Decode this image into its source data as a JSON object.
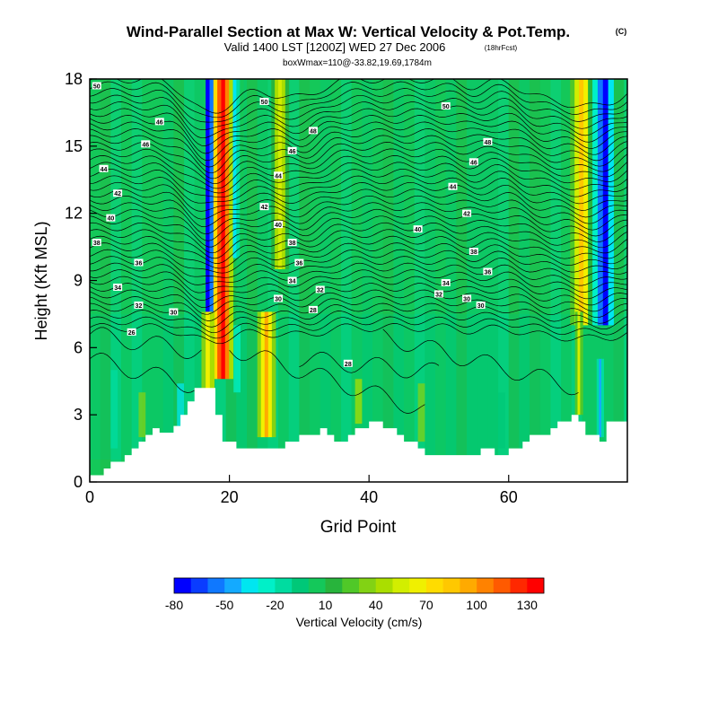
{
  "chart_data": {
    "type": "heatmap",
    "title": "Wind-Parallel Section at Max W: Vertical Velocity & Pot.Temp.",
    "title_mark": "(C)",
    "subtitle": "Valid 1400 LST [1200Z] WED 27 Dec 2006",
    "subtitle_mark": "(18hrFcst)",
    "subtitle2": "boxWmax=110@-33.82,19.69,1784m",
    "xlabel": "Grid Point",
    "ylabel": "Height (Kft MSL)",
    "xlim": [
      0,
      77
    ],
    "ylim": [
      0,
      18
    ],
    "xticks": [
      "0",
      "20",
      "40",
      "60"
    ],
    "xtick_values": [
      0,
      20,
      40,
      60
    ],
    "yticks": [
      "0",
      "3",
      "6",
      "9",
      "12",
      "15",
      "18"
    ],
    "ytick_values": [
      0,
      3,
      6,
      9,
      12,
      15,
      18
    ],
    "colorbar": {
      "label": "Vertical Velocity (cm/s)",
      "tick_labels": [
        "-80",
        "-50",
        "-20",
        "10",
        "40",
        "70",
        "100",
        "130"
      ],
      "tick_values": [
        -80,
        -50,
        -20,
        10,
        40,
        70,
        100,
        130
      ],
      "min": -80,
      "max": 140,
      "step": 10,
      "colors": [
        "#0000ff",
        "#0a3cff",
        "#0f78ff",
        "#14aaff",
        "#00e6f0",
        "#00f0c8",
        "#00dca0",
        "#00c878",
        "#14c85a",
        "#28b43c",
        "#50c828",
        "#82d214",
        "#aade00",
        "#d2ee00",
        "#f0f000",
        "#ffdc00",
        "#ffc800",
        "#ffaa00",
        "#ff8200",
        "#ff5a00",
        "#ff2800",
        "#ff0000"
      ]
    },
    "ridges": [
      {
        "x": 72,
        "w": 60
      },
      {
        "x": 17,
        "w": 40
      },
      {
        "x": 26,
        "w": 60
      },
      {
        "x": 55,
        "w": 30
      },
      {
        "x": 31,
        "w": 30
      },
      {
        "x": 63,
        "w": 30
      },
      {
        "x": 66,
        "w": 30
      }
    ],
    "terrain": [
      {
        "x": 0,
        "h": 0.3
      },
      {
        "x": 2,
        "h": 0.6
      },
      {
        "x": 3,
        "h": 0.9
      },
      {
        "x": 5,
        "h": 1.2
      },
      {
        "x": 6,
        "h": 1.5
      },
      {
        "x": 7,
        "h": 1.8
      },
      {
        "x": 8,
        "h": 2.1
      },
      {
        "x": 9,
        "h": 2.4
      },
      {
        "x": 10,
        "h": 2.2
      },
      {
        "x": 12,
        "h": 2.5
      },
      {
        "x": 13,
        "h": 3.0
      },
      {
        "x": 14,
        "h": 3.6
      },
      {
        "x": 15,
        "h": 4.2
      },
      {
        "x": 18,
        "h": 3.0
      },
      {
        "x": 19,
        "h": 1.8
      },
      {
        "x": 21,
        "h": 1.5
      },
      {
        "x": 22,
        "h": 1.5
      },
      {
        "x": 28,
        "h": 1.8
      },
      {
        "x": 30,
        "h": 2.1
      },
      {
        "x": 33,
        "h": 2.4
      },
      {
        "x": 34,
        "h": 2.1
      },
      {
        "x": 35,
        "h": 1.8
      },
      {
        "x": 37,
        "h": 2.1
      },
      {
        "x": 38,
        "h": 2.4
      },
      {
        "x": 40,
        "h": 2.7
      },
      {
        "x": 42,
        "h": 2.4
      },
      {
        "x": 44,
        "h": 2.1
      },
      {
        "x": 45,
        "h": 1.8
      },
      {
        "x": 47,
        "h": 1.5
      },
      {
        "x": 48,
        "h": 1.2
      },
      {
        "x": 50,
        "h": 1.2
      },
      {
        "x": 56,
        "h": 1.5
      },
      {
        "x": 58,
        "h": 1.2
      },
      {
        "x": 60,
        "h": 1.5
      },
      {
        "x": 62,
        "h": 1.8
      },
      {
        "x": 63,
        "h": 2.1
      },
      {
        "x": 66,
        "h": 2.4
      },
      {
        "x": 67,
        "h": 2.7
      },
      {
        "x": 69,
        "h": 3.0
      },
      {
        "x": 70,
        "h": 2.7
      },
      {
        "x": 71,
        "h": 2.1
      },
      {
        "x": 73,
        "h": 1.8
      },
      {
        "x": 74,
        "h": 2.7
      },
      {
        "x": 77,
        "h": 2.7
      }
    ],
    "isentrope_labels": [
      {
        "text": "50",
        "x": 1,
        "y": 17.7
      },
      {
        "text": "46",
        "x": 10,
        "y": 16.1
      },
      {
        "text": "46",
        "x": 8,
        "y": 15.1
      },
      {
        "text": "44",
        "x": 2,
        "y": 14.0
      },
      {
        "text": "42",
        "x": 4,
        "y": 12.9
      },
      {
        "text": "40",
        "x": 3,
        "y": 11.8
      },
      {
        "text": "38",
        "x": 1,
        "y": 10.7
      },
      {
        "text": "36",
        "x": 7,
        "y": 9.8
      },
      {
        "text": "34",
        "x": 4,
        "y": 8.7
      },
      {
        "text": "32",
        "x": 7,
        "y": 7.9
      },
      {
        "text": "30",
        "x": 12,
        "y": 7.6
      },
      {
        "text": "26",
        "x": 6,
        "y": 6.7
      },
      {
        "text": "50",
        "x": 25,
        "y": 17.0
      },
      {
        "text": "48",
        "x": 32,
        "y": 15.7
      },
      {
        "text": "46",
        "x": 29,
        "y": 14.8
      },
      {
        "text": "44",
        "x": 27,
        "y": 13.7
      },
      {
        "text": "42",
        "x": 25,
        "y": 12.3
      },
      {
        "text": "40",
        "x": 27,
        "y": 11.5
      },
      {
        "text": "38",
        "x": 29,
        "y": 10.7
      },
      {
        "text": "36",
        "x": 30,
        "y": 9.8
      },
      {
        "text": "34",
        "x": 29,
        "y": 9.0
      },
      {
        "text": "32",
        "x": 33,
        "y": 8.6
      },
      {
        "text": "30",
        "x": 27,
        "y": 8.2
      },
      {
        "text": "28",
        "x": 32,
        "y": 7.7
      },
      {
        "text": "28",
        "x": 37,
        "y": 5.3
      },
      {
        "text": "50",
        "x": 51,
        "y": 16.8
      },
      {
        "text": "48",
        "x": 57,
        "y": 15.2
      },
      {
        "text": "46",
        "x": 55,
        "y": 14.3
      },
      {
        "text": "44",
        "x": 52,
        "y": 13.2
      },
      {
        "text": "42",
        "x": 54,
        "y": 12.0
      },
      {
        "text": "40",
        "x": 47,
        "y": 11.3
      },
      {
        "text": "38",
        "x": 55,
        "y": 10.3
      },
      {
        "text": "36",
        "x": 57,
        "y": 9.4
      },
      {
        "text": "34",
        "x": 51,
        "y": 8.9
      },
      {
        "text": "32",
        "x": 50,
        "y": 8.4
      },
      {
        "text": "30",
        "x": 54,
        "y": 8.2
      },
      {
        "text": "30",
        "x": 56,
        "y": 7.9
      }
    ]
  }
}
